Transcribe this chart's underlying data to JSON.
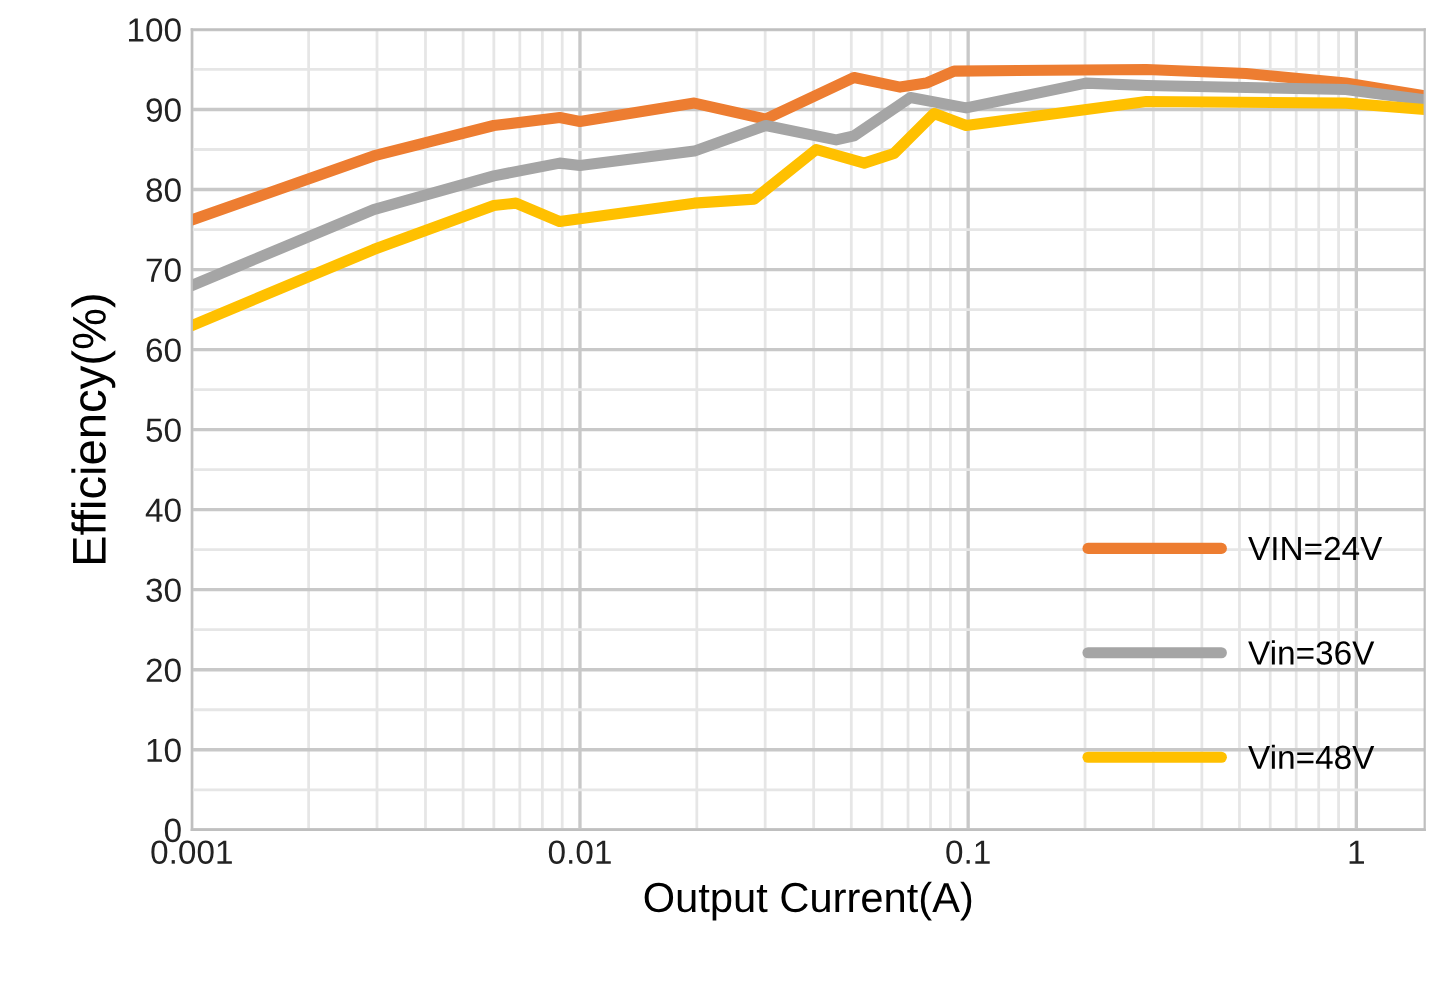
{
  "chart_data": {
    "type": "line",
    "xlabel": "Output Current(A)",
    "ylabel": "Efficiency(%)",
    "log": "x",
    "xlim": [
      0.001,
      1.5
    ],
    "xticks": [
      0.001,
      0.01,
      0.1,
      1
    ],
    "ylim": [
      0,
      100
    ],
    "yticks": [
      0,
      10,
      20,
      30,
      40,
      50,
      60,
      70,
      80,
      90,
      100
    ],
    "grid": true,
    "legend": "bottom right",
    "marker": "none",
    "line_style": "solid",
    "series": [
      {
        "name": "VIN=24V",
        "color": "#ed7d31",
        "x": [
          0.001,
          0.00294,
          0.006,
          0.00887,
          0.01,
          0.0197,
          0.0301,
          0.0508,
          0.0668,
          0.078,
          0.092,
          0.288,
          0.52,
          0.94,
          1.5
        ],
        "values": [
          76.2,
          84.2,
          88,
          89,
          88.5,
          90.8,
          88.8,
          94,
          92.8,
          93.3,
          94.8,
          95,
          94.5,
          93.3,
          91.7
        ]
      },
      {
        "name": "Vin=36V",
        "color": "#a5a5a5",
        "x": [
          0.001,
          0.00294,
          0.006,
          0.00887,
          0.01,
          0.0197,
          0.0301,
          0.0457,
          0.0508,
          0.071,
          0.0988,
          0.201,
          0.288,
          0.94,
          1.5
        ],
        "values": [
          68,
          77.5,
          81.7,
          83.3,
          83,
          84.8,
          88,
          86.2,
          86.7,
          91.5,
          90.2,
          93.3,
          93,
          92.5,
          91.2
        ]
      },
      {
        "name": "Vin=48V",
        "color": "#ffc000",
        "x": [
          0.001,
          0.00294,
          0.006,
          0.00684,
          0.00887,
          0.0197,
          0.0281,
          0.0406,
          0.054,
          0.0644,
          0.0817,
          0.0988,
          0.288,
          0.94,
          1.5
        ],
        "values": [
          63,
          72.5,
          78,
          78.3,
          76,
          78.3,
          78.8,
          85,
          83.3,
          84.5,
          89.5,
          88,
          91,
          90.8,
          90
        ]
      }
    ]
  }
}
